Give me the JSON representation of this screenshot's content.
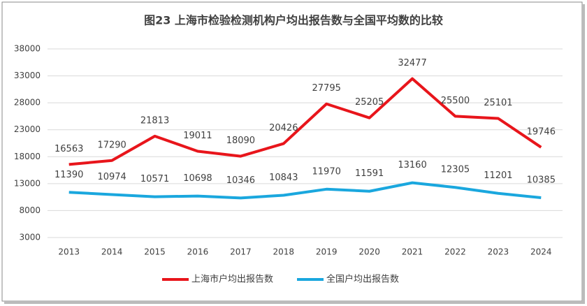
{
  "chart_data": {
    "type": "line",
    "title": "图23 上海市检验检测机构户均出报告数与全国平均数的比较",
    "categories": [
      "2013",
      "2014",
      "2015",
      "2016",
      "2017",
      "2018",
      "2019",
      "2020",
      "2021",
      "2022",
      "2023",
      "2024"
    ],
    "series": [
      {
        "name": "上海市户均出报告数",
        "color": "#e8151b",
        "values": [
          16563,
          17290,
          21813,
          19011,
          18090,
          20426,
          27795,
          25205,
          32477,
          25500,
          25101,
          19746
        ]
      },
      {
        "name": "全国户均出报告数",
        "color": "#1aa7de",
        "values": [
          11390,
          10974,
          10571,
          10698,
          10346,
          10843,
          11970,
          11591,
          13160,
          12305,
          11201,
          10385
        ]
      }
    ],
    "ylim": [
      3000,
      38000
    ],
    "yticks": [
      3000,
      8000,
      13000,
      18000,
      23000,
      28000,
      33000,
      38000
    ],
    "grid": true,
    "legend": "bottom"
  }
}
